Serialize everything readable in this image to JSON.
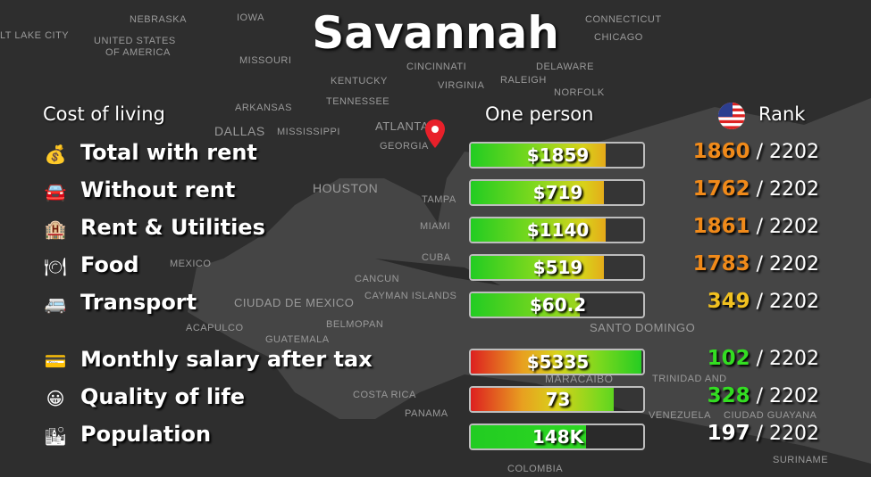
{
  "title": "Savannah",
  "headers": {
    "category": "Cost of living",
    "column": "One person",
    "rank": "Rank",
    "rank_flag_icon": "us-flag-icon"
  },
  "colors": {
    "orange": "#f08a1a",
    "yellow": "#f0c020",
    "green": "#33dd22",
    "white": "#ffffff"
  },
  "rows": [
    {
      "icon": "money-bag-icon",
      "glyph": "💰",
      "label": "Total with rent",
      "value": "$1859",
      "fill": 0.78,
      "fill_style": "good-to-bad",
      "rank": "1860",
      "rank_color": "#f08a1a",
      "total": "/ 2202"
    },
    {
      "icon": "car-icon",
      "glyph": "🚘",
      "label": "Without rent",
      "value": "$719",
      "fill": 0.77,
      "fill_style": "good-to-bad",
      "rank": "1762",
      "rank_color": "#f08a1a",
      "total": "/ 2202"
    },
    {
      "icon": "hotel-building-icon",
      "glyph": "🏨",
      "label": "Rent & Utilities",
      "value": "$1140",
      "fill": 0.78,
      "fill_style": "good-to-bad",
      "rank": "1861",
      "rank_color": "#f08a1a",
      "total": "/ 2202"
    },
    {
      "icon": "plate-cutlery-icon",
      "glyph": "🍽",
      "label": "Food",
      "value": "$519",
      "fill": 0.77,
      "fill_style": "good-to-bad",
      "rank": "1783",
      "rank_color": "#f08a1a",
      "total": "/ 2202"
    },
    {
      "icon": "bus-icon",
      "glyph": "🚐",
      "label": "Transport",
      "value": "$60.2",
      "fill": 0.63,
      "fill_style": "good-to-mid",
      "rank": "349",
      "rank_color": "#f0c020",
      "total": "/ 2202"
    },
    {
      "icon": "credit-card-icon",
      "glyph": "💳",
      "label": "Monthly salary after tax",
      "value": "$5335",
      "fill": 0.99,
      "fill_style": "bad-to-good",
      "rank": "102",
      "rank_color": "#33dd22",
      "total": "/ 2202"
    },
    {
      "icon": "smiley-icon",
      "glyph": "😀",
      "label": "Quality of life",
      "value": "73",
      "fill": 0.83,
      "fill_style": "bad-to-good",
      "rank": "328",
      "rank_color": "#33dd22",
      "total": "/ 2202"
    },
    {
      "icon": "city-icon",
      "glyph": "🏙",
      "label": "Population",
      "value": "148K",
      "fill": 0.67,
      "fill_style": "green",
      "rank": "197",
      "rank_color": "#ffffff",
      "total": "/ 2202"
    }
  ],
  "map_labels": [
    "NEBRASKA",
    "IOWA",
    "CHICAGO",
    "CONNECTICUT",
    "LT LAKE CITY",
    "UNITED STATES",
    "OF AMERICA",
    "MISSOURI",
    "CINCINNATI",
    "DELAWARE",
    "KENTUCKY",
    "VIRGINIA",
    "RALEIGH",
    "NORFOLK",
    "TENNESSEE",
    "ARKANSAS",
    "ATLANTA",
    "DALLAS",
    "MISSISSIPPI",
    "GEORGIA",
    "HOUSTON",
    "TAMPA",
    "MIAMI",
    "MEXICO",
    "CUBA",
    "CANCUN",
    "CIUDAD DE MEXICO",
    "CAYMAN ISLANDS",
    "SANTO DOMINGO",
    "BELMOPAN",
    "ACAPULCO",
    "GUATEMALA",
    "COSTA RICA",
    "PANAMA",
    "MARACAIBO",
    "TRINIDAD AND",
    "VENEZUELA",
    "CIUDAD GUAYANA",
    "SURINAME",
    "COLOMBIA"
  ]
}
